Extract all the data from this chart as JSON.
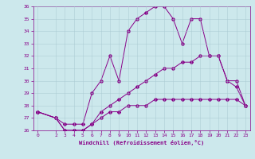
{
  "xlabel": "Windchill (Refroidissement éolien,°C)",
  "background_color": "#cce8ec",
  "line_color": "#880088",
  "ylim": [
    26,
    36
  ],
  "xlim": [
    -0.5,
    23.5
  ],
  "yticks": [
    26,
    27,
    28,
    29,
    30,
    31,
    32,
    33,
    34,
    35,
    36
  ],
  "xticks": [
    0,
    2,
    3,
    4,
    5,
    6,
    7,
    8,
    9,
    10,
    11,
    12,
    13,
    14,
    15,
    16,
    17,
    18,
    19,
    20,
    21,
    22,
    23
  ],
  "line1_x": [
    0,
    2,
    3,
    4,
    5,
    6,
    7,
    8,
    9,
    10,
    11,
    12,
    13,
    14,
    15,
    16,
    17,
    18,
    19,
    20,
    21,
    22,
    23
  ],
  "line1_y": [
    27.5,
    27.0,
    26.5,
    26.5,
    26.5,
    29.0,
    30.0,
    32.0,
    30.0,
    34.0,
    35.0,
    35.5,
    36.0,
    36.0,
    35.0,
    33.0,
    35.0,
    35.0,
    32.0,
    32.0,
    30.0,
    29.5,
    28.0
  ],
  "line2_x": [
    0,
    2,
    3,
    4,
    5,
    6,
    7,
    8,
    9,
    10,
    11,
    12,
    13,
    14,
    15,
    16,
    17,
    18,
    19,
    20,
    21,
    22,
    23
  ],
  "line2_y": [
    27.5,
    27.0,
    26.0,
    26.0,
    26.0,
    26.5,
    27.5,
    28.0,
    28.5,
    29.0,
    29.5,
    30.0,
    30.5,
    31.0,
    31.0,
    31.5,
    31.5,
    32.0,
    32.0,
    32.0,
    30.0,
    30.0,
    28.0
  ],
  "line3_x": [
    0,
    2,
    3,
    4,
    5,
    6,
    7,
    8,
    9,
    10,
    11,
    12,
    13,
    14,
    15,
    16,
    17,
    18,
    19,
    20,
    21,
    22,
    23
  ],
  "line3_y": [
    27.5,
    27.0,
    26.0,
    26.0,
    26.0,
    26.5,
    27.0,
    27.5,
    27.5,
    28.0,
    28.0,
    28.0,
    28.5,
    28.5,
    28.5,
    28.5,
    28.5,
    28.5,
    28.5,
    28.5,
    28.5,
    28.5,
    28.0
  ]
}
